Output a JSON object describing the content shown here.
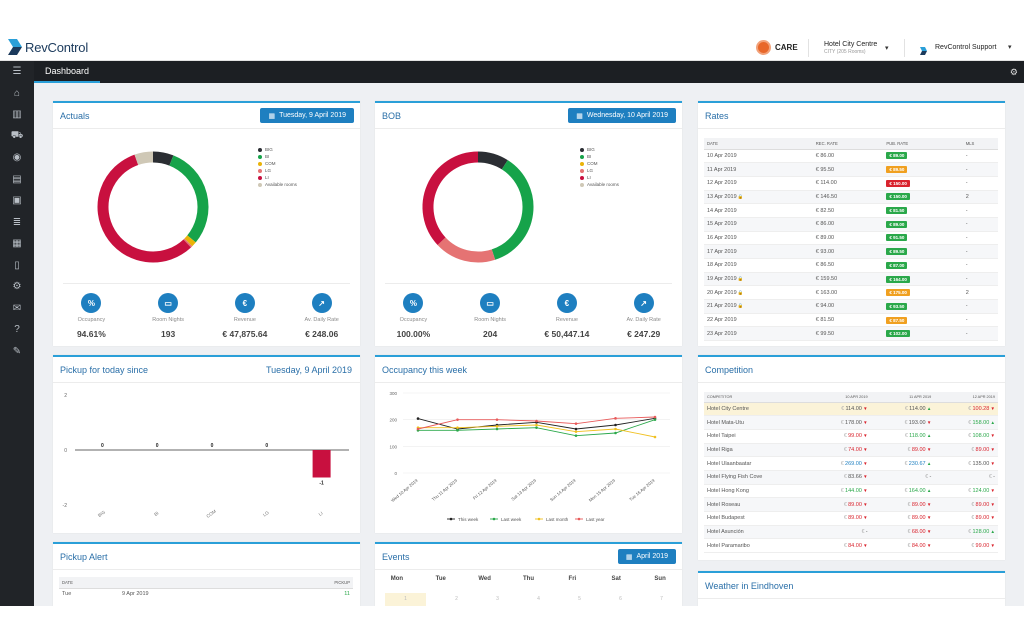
{
  "brand": {
    "name": "RevControl",
    "accent": "#2a9fd8",
    "button": "#1e7fc0"
  },
  "topbar": {
    "care_label": "CARE",
    "hotel_name": "Hotel City Centre",
    "hotel_sub": "CITY (205 Rooms)",
    "support_label": "RevControl Support"
  },
  "sidebar": {
    "items": [
      "menu-icon",
      "home-icon",
      "chart-icon",
      "cart-icon",
      "eye-icon",
      "calculator-icon",
      "briefcase-icon",
      "layers-icon",
      "calendar-icon",
      "document-icon",
      "cogs-icon",
      "mail-icon",
      "help-icon",
      "edit-icon"
    ]
  },
  "nav": {
    "tab": "Dashboard"
  },
  "actuals": {
    "title": "Actuals",
    "date": "Tuesday, 9 April 2019",
    "legend": [
      "BIG",
      "BI",
      "COM",
      "LG",
      "LI",
      "Available rooms"
    ],
    "donut": [
      {
        "label": "BIG",
        "value": 6,
        "color": "#2b2e33"
      },
      {
        "label": "BI",
        "value": 30,
        "color": "#16a34a"
      },
      {
        "label": "COM",
        "value": 1.5,
        "color": "#eab308"
      },
      {
        "label": "LG",
        "value": 0.5,
        "color": "#e57373"
      },
      {
        "label": "LI",
        "value": 56.6,
        "color": "#c8103f"
      },
      {
        "label": "Available rooms",
        "value": 5.4,
        "color": "#cfc8b6"
      }
    ],
    "kpis": [
      {
        "icon": "percent-icon",
        "label": "Occupancy",
        "value": "94.61%"
      },
      {
        "icon": "bed-icon",
        "label": "Room Nights",
        "value": "193"
      },
      {
        "icon": "euro-icon",
        "label": "Revenue",
        "value": "€ 47,875.64"
      },
      {
        "icon": "chart-up-icon",
        "label": "Av. Daily Rate",
        "value": "€ 248.06"
      }
    ]
  },
  "bob": {
    "title": "BOB",
    "date": "Wednesday, 10 April 2019",
    "legend": [
      "BIG",
      "BI",
      "COM",
      "LG",
      "LI",
      "Available rooms"
    ],
    "donut": [
      {
        "label": "BIG",
        "value": 9,
        "color": "#2b2e33"
      },
      {
        "label": "BI",
        "value": 36,
        "color": "#16a34a"
      },
      {
        "label": "COM",
        "value": 0,
        "color": "#eab308"
      },
      {
        "label": "LG",
        "value": 18,
        "color": "#e57373"
      },
      {
        "label": "LI",
        "value": 37,
        "color": "#c8103f"
      },
      {
        "label": "Available rooms",
        "value": 0,
        "color": "#cfc8b6"
      }
    ],
    "kpis": [
      {
        "icon": "percent-icon",
        "label": "Occupancy",
        "value": "100.00%"
      },
      {
        "icon": "bed-icon",
        "label": "Room Nights",
        "value": "204"
      },
      {
        "icon": "euro-icon",
        "label": "Revenue",
        "value": "€ 50,447.14"
      },
      {
        "icon": "chart-up-icon",
        "label": "Av. Daily Rate",
        "value": "€ 247.29"
      }
    ]
  },
  "rates": {
    "title": "Rates",
    "headers": [
      "DATE",
      "REC. RATE",
      "PUB. RATE",
      "MLS"
    ],
    "rows": [
      {
        "date": "10 Apr 2019",
        "rec": "€ 86.00",
        "pub": "€ 89.00",
        "color": "#2aa84a",
        "mls": "-",
        "lock": false
      },
      {
        "date": "11 Apr 2019",
        "rec": "€ 95.50",
        "pub": "€ 89.50",
        "color": "#f0a020",
        "mls": "-",
        "lock": false
      },
      {
        "date": "12 Apr 2019",
        "rec": "€ 114.00",
        "pub": "€ 150.00",
        "color": "#d9232d",
        "mls": "-",
        "lock": false
      },
      {
        "date": "13 Apr 2019",
        "rec": "€ 146.50",
        "pub": "€ 150.00",
        "color": "#2aa84a",
        "mls": "2",
        "lock": true
      },
      {
        "date": "14 Apr 2019",
        "rec": "€ 82.50",
        "pub": "€ 81.50",
        "color": "#2aa84a",
        "mls": "-",
        "lock": false
      },
      {
        "date": "15 Apr 2019",
        "rec": "€ 86.00",
        "pub": "€ 89.00",
        "color": "#2aa84a",
        "mls": "-",
        "lock": false
      },
      {
        "date": "16 Apr 2019",
        "rec": "€ 89.00",
        "pub": "€ 91.50",
        "color": "#2aa84a",
        "mls": "-",
        "lock": false
      },
      {
        "date": "17 Apr 2019",
        "rec": "€ 93.00",
        "pub": "€ 89.50",
        "color": "#2aa84a",
        "mls": "-",
        "lock": false
      },
      {
        "date": "18 Apr 2019",
        "rec": "€ 86.50",
        "pub": "€ 87.00",
        "color": "#2aa84a",
        "mls": "-",
        "lock": false
      },
      {
        "date": "19 Apr 2019",
        "rec": "€ 159.50",
        "pub": "€ 164.00",
        "color": "#2aa84a",
        "mls": "-",
        "lock": true
      },
      {
        "date": "20 Apr 2019",
        "rec": "€ 163.00",
        "pub": "€ 175.00",
        "color": "#f0a020",
        "mls": "2",
        "lock": true
      },
      {
        "date": "21 Apr 2019",
        "rec": "€ 94.00",
        "pub": "€ 93.50",
        "color": "#2aa84a",
        "mls": "-",
        "lock": true
      },
      {
        "date": "22 Apr 2019",
        "rec": "€ 81.50",
        "pub": "€ 87.50",
        "color": "#f0a020",
        "mls": "-",
        "lock": false
      },
      {
        "date": "23 Apr 2019",
        "rec": "€ 99.50",
        "pub": "€ 102.00",
        "color": "#2aa84a",
        "mls": "-",
        "lock": false
      }
    ]
  },
  "pickup": {
    "title": "Pickup for today since",
    "date": "Tuesday, 9 April 2019",
    "chart_data": {
      "type": "bar",
      "categories": [
        "BIG",
        "BI",
        "COM",
        "LG",
        "LI"
      ],
      "values": [
        0,
        0,
        0,
        0,
        -1
      ],
      "ylim": [
        -2,
        2
      ],
      "yticks": [
        "2",
        "0",
        "-2"
      ],
      "labels": [
        "0",
        "0",
        "0",
        "0",
        "-1"
      ]
    }
  },
  "occupancy": {
    "title": "Occupancy this week",
    "chart_data": {
      "type": "line",
      "categories": [
        "Wed 10 Apr 2019",
        "Thu 11 Apr 2019",
        "Fri 12 Apr 2019",
        "Sat 13 Apr 2019",
        "Sun 14 Apr 2019",
        "Mon 15 Apr 2019",
        "Tue 16 Apr 2019"
      ],
      "ylim": [
        0,
        300
      ],
      "yticks": [
        "300",
        "200",
        "100",
        "0"
      ],
      "series": [
        {
          "name": "This week",
          "color": "#222222",
          "values": [
            204,
            165,
            180,
            190,
            165,
            180,
            205
          ]
        },
        {
          "name": "Last week",
          "color": "#2aa84a",
          "values": [
            160,
            160,
            165,
            170,
            140,
            150,
            200
          ]
        },
        {
          "name": "Last month",
          "color": "#f0c020",
          "values": [
            170,
            170,
            175,
            180,
            155,
            165,
            135
          ]
        },
        {
          "name": "Last year",
          "color": "#e85a5a",
          "values": [
            165,
            200,
            200,
            195,
            185,
            205,
            210
          ]
        }
      ]
    }
  },
  "competition": {
    "title": "Competition",
    "headers": [
      "COMPETITOR",
      "10 APR 2019",
      "11 APR 2019",
      "12 APR 2019"
    ],
    "rows": [
      {
        "name": "Hotel City Centre",
        "v": [
          "114.00",
          "114.00",
          "100.28"
        ],
        "t": [
          "down",
          "up",
          "down"
        ],
        "c": [
          "#555555",
          "#555555",
          "#d9232d"
        ],
        "hl": true
      },
      {
        "name": "Hotel Mata-Utu",
        "v": [
          "178.00",
          "193.00",
          "158.00"
        ],
        "t": [
          "down",
          "down",
          "up"
        ],
        "c": [
          "#555555",
          "#555555",
          "#2aa84a"
        ],
        "hl": false
      },
      {
        "name": "Hotel Taipei",
        "v": [
          "99.00",
          "118.00",
          "108.00"
        ],
        "t": [
          "down",
          "up",
          "down"
        ],
        "c": [
          "#d9232d",
          "#2aa84a",
          "#2aa84a"
        ],
        "hl": false
      },
      {
        "name": "Hotel Riga",
        "v": [
          "74.00",
          "89.00",
          "89.00"
        ],
        "t": [
          "down",
          "down",
          "down"
        ],
        "c": [
          "#d9232d",
          "#d9232d",
          "#d9232d"
        ],
        "hl": false
      },
      {
        "name": "Hotel Ulaanbaatar",
        "v": [
          "269.00",
          "230.67",
          "135.00"
        ],
        "t": [
          "down",
          "up",
          "down"
        ],
        "c": [
          "#1e7fc0",
          "#1e7fc0",
          "#555555"
        ],
        "hl": false
      },
      {
        "name": "Hotel Flying Fish Cove",
        "v": [
          "83.66",
          "-",
          "-"
        ],
        "t": [
          "down",
          "",
          ""
        ],
        "c": [
          "#555555",
          "#555555",
          "#555555"
        ],
        "hl": false
      },
      {
        "name": "Hotel Hong Kong",
        "v": [
          "144.00",
          "164.00",
          "124.00"
        ],
        "t": [
          "down",
          "up",
          "down"
        ],
        "c": [
          "#2aa84a",
          "#2aa84a",
          "#2aa84a"
        ],
        "hl": false
      },
      {
        "name": "Hotel Roseau",
        "v": [
          "89.00",
          "89.00",
          "89.00"
        ],
        "t": [
          "down",
          "down",
          "down"
        ],
        "c": [
          "#d9232d",
          "#d9232d",
          "#d9232d"
        ],
        "hl": false
      },
      {
        "name": "Hotel Budapest",
        "v": [
          "89.00",
          "89.00",
          "89.00"
        ],
        "t": [
          "down",
          "down",
          "down"
        ],
        "c": [
          "#d9232d",
          "#d9232d",
          "#d9232d"
        ],
        "hl": false
      },
      {
        "name": "Hotel Asunción",
        "v": [
          "-",
          "68.00",
          "128.00"
        ],
        "t": [
          "",
          "down",
          "up"
        ],
        "c": [
          "#555555",
          "#d9232d",
          "#2aa84a"
        ],
        "hl": false
      },
      {
        "name": "Hotel Paramaribo",
        "v": [
          "84.00",
          "84.00",
          "99.00"
        ],
        "t": [
          "down",
          "down",
          "down"
        ],
        "c": [
          "#d9232d",
          "#d9232d",
          "#d9232d"
        ],
        "hl": false
      }
    ]
  },
  "pickup_alert": {
    "title": "Pickup Alert",
    "headers": [
      "DATE",
      "PICKUP"
    ],
    "rows": [
      {
        "day": "Tue",
        "date": "9 Apr 2019",
        "pickup": "11"
      }
    ]
  },
  "events": {
    "title": "Events",
    "date": "April 2019",
    "days": [
      "Mon",
      "Tue",
      "Wed",
      "Thu",
      "Fri",
      "Sat",
      "Sun"
    ],
    "nums": [
      "1",
      "2",
      "3",
      "4",
      "5",
      "6",
      "7"
    ]
  },
  "weather": {
    "title": "Weather in Eindhoven"
  }
}
